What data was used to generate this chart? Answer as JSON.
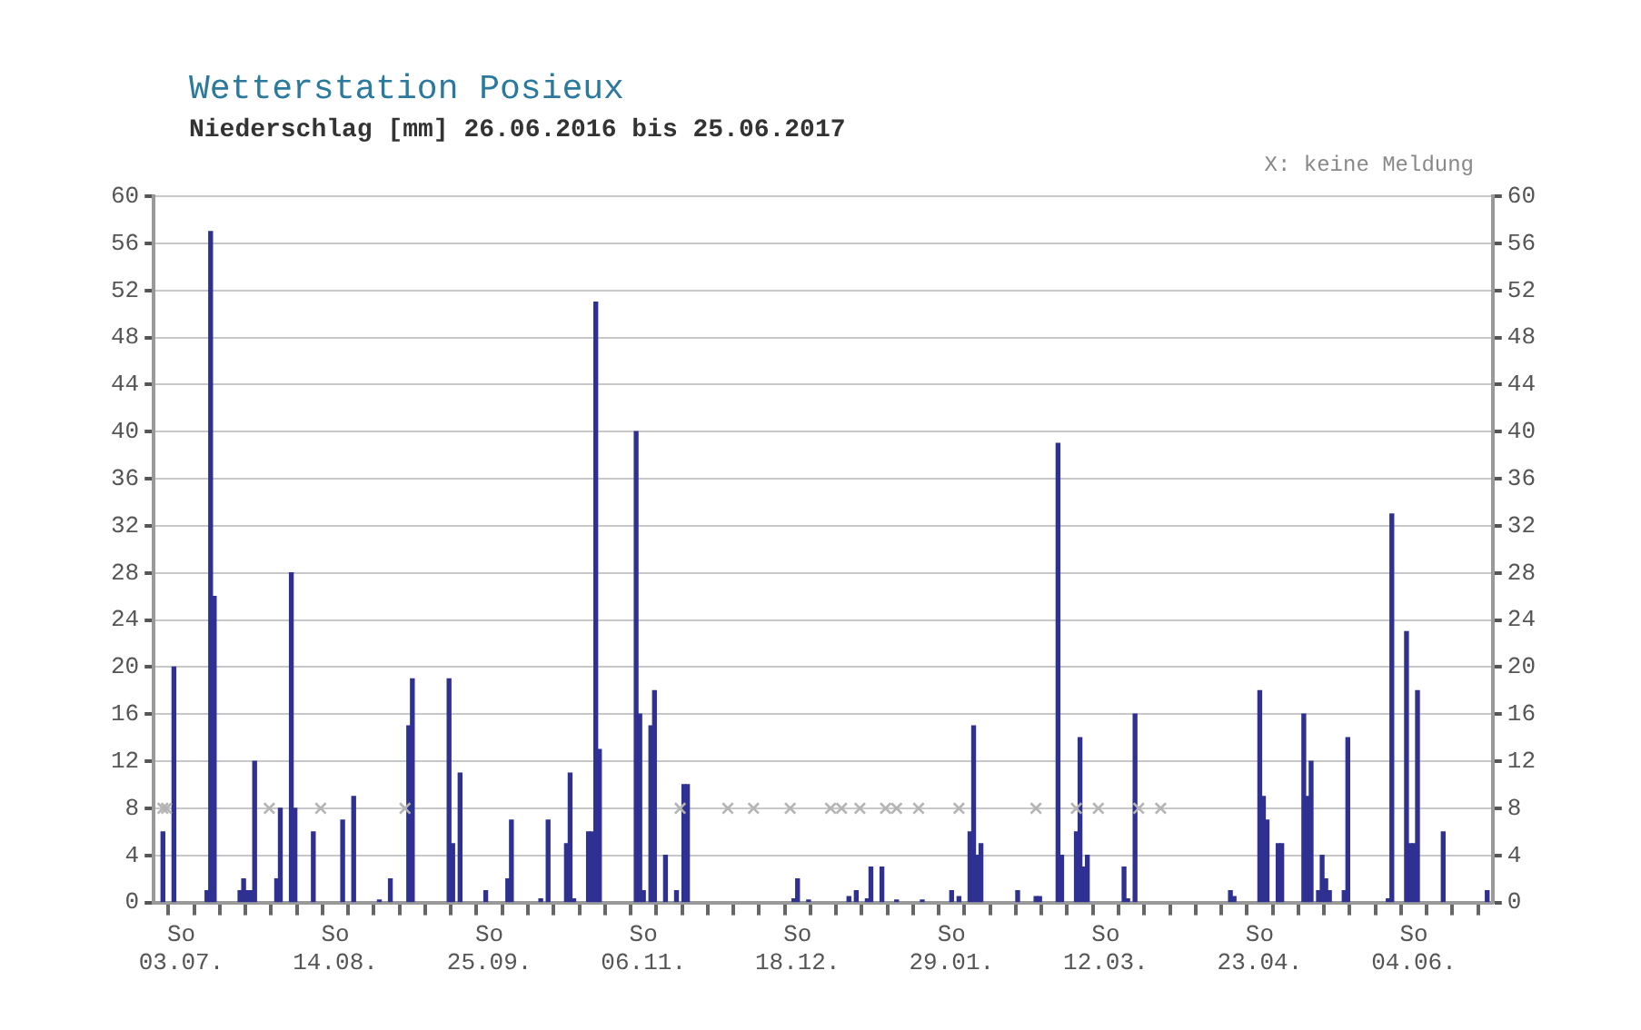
{
  "chart_data": {
    "type": "bar",
    "title": "Wetterstation Posieux",
    "subtitle": "Niederschlag [mm] 26.06.2016 bis 25.06.2017",
    "annotations": [
      "X: keine Meldung"
    ],
    "categories": [
      null,
      null,
      null,
      null,
      null,
      null,
      null,
      "So\n03.07.",
      null,
      null,
      null,
      null,
      null,
      null,
      null,
      null,
      null,
      null,
      null,
      null,
      null,
      null,
      null,
      null,
      null,
      null,
      null,
      null,
      null,
      null,
      null,
      null,
      null,
      null,
      null,
      null,
      null,
      null,
      null,
      null,
      null,
      null,
      null,
      null,
      null,
      null,
      null,
      null,
      null,
      "So\n14.08.",
      null,
      null,
      null,
      null,
      null,
      null,
      null,
      null,
      null,
      null,
      null,
      null,
      null,
      null,
      null,
      null,
      null,
      null,
      null,
      null,
      null,
      null,
      null,
      null,
      null,
      null,
      null,
      null,
      null,
      null,
      null,
      null,
      null,
      null,
      null,
      null,
      null,
      null,
      null,
      null,
      null,
      "So\n25.09.",
      null,
      null,
      null,
      null,
      null,
      null,
      null,
      null,
      null,
      null,
      null,
      null,
      null,
      null,
      null,
      null,
      null,
      null,
      null,
      null,
      null,
      null,
      null,
      null,
      null,
      null,
      null,
      null,
      null,
      null,
      null,
      null,
      null,
      null,
      null,
      null,
      null,
      null,
      null,
      null,
      null,
      "So\n06.11.",
      null,
      null,
      null,
      null,
      null,
      null,
      null,
      null,
      null,
      null,
      null,
      null,
      null,
      null,
      null,
      null,
      null,
      null,
      null,
      null,
      null,
      null,
      null,
      null,
      null,
      null,
      null,
      null,
      null,
      null,
      null,
      null,
      null,
      null,
      null,
      null,
      null,
      null,
      null,
      null,
      null,
      "So\n18.12.",
      null,
      null,
      null,
      null,
      null,
      null,
      null,
      null,
      null,
      null,
      null,
      null,
      null,
      null,
      null,
      null,
      null,
      null,
      null,
      null,
      null,
      null,
      null,
      null,
      null,
      null,
      null,
      null,
      null,
      null,
      null,
      null,
      null,
      null,
      null,
      null,
      null,
      null,
      null,
      null,
      null,
      "So\n29.01.",
      null,
      null,
      null,
      null,
      null,
      null,
      null,
      null,
      null,
      null,
      null,
      null,
      null,
      null,
      null,
      null,
      null,
      null,
      null,
      null,
      null,
      null,
      null,
      null,
      null,
      null,
      null,
      null,
      null,
      null,
      null,
      null,
      null,
      null,
      null,
      null,
      null,
      null,
      null,
      null,
      null,
      "So\n12.03.",
      null,
      null,
      null,
      null,
      null,
      null,
      null,
      null,
      null,
      null,
      null,
      null,
      null,
      null,
      null,
      null,
      null,
      null,
      null,
      null,
      null,
      null,
      null,
      null,
      null,
      null,
      null,
      null,
      null,
      null,
      null,
      null,
      null,
      null,
      null,
      null,
      null,
      null,
      null,
      null,
      null,
      "So\n23.04.",
      null,
      null,
      null,
      null,
      null,
      null,
      null,
      null,
      null,
      null,
      null,
      null,
      null,
      null,
      null,
      null,
      null,
      null,
      null,
      null,
      null,
      null,
      null,
      null,
      null,
      null,
      null,
      null,
      null,
      null,
      null,
      null,
      null,
      null,
      null,
      null,
      null,
      null,
      null,
      null,
      null,
      "So\n04.06.",
      null,
      null,
      null,
      null,
      null,
      null,
      null,
      null,
      null,
      null,
      null,
      null,
      null,
      null,
      null,
      null,
      null,
      null,
      null,
      null,
      null
    ],
    "series": [
      {
        "color": "#2e3192",
        "values": [
          0,
          0,
          6,
          0,
          0,
          20,
          0,
          0,
          0,
          0,
          0,
          0,
          0,
          0,
          1,
          57,
          26,
          0,
          0,
          0,
          0,
          0,
          0,
          1,
          2,
          1,
          1,
          12,
          0,
          0,
          0,
          0,
          0,
          2,
          8,
          0,
          0,
          28,
          8,
          0,
          0,
          0,
          0,
          6,
          0,
          0,
          0,
          0,
          0,
          0,
          0,
          7,
          0,
          0,
          9,
          0,
          0,
          0,
          0,
          0,
          0,
          0.2,
          0,
          0,
          2,
          0,
          0,
          0,
          0,
          15,
          19,
          0,
          0,
          0,
          0,
          0,
          0,
          0,
          0,
          0,
          19,
          5,
          0,
          11,
          0,
          0,
          0,
          0,
          0,
          0,
          1,
          0,
          0,
          0,
          0,
          0,
          2,
          7,
          0,
          0,
          0,
          0,
          0,
          0,
          0,
          0.3,
          0,
          7,
          0,
          0,
          0,
          0,
          5,
          11,
          0.3,
          0,
          0,
          0,
          6,
          6,
          51,
          13,
          0,
          0,
          0,
          0,
          0,
          0,
          0,
          0,
          0,
          40,
          16,
          1,
          0,
          15,
          18,
          0,
          0,
          4,
          0,
          0,
          1,
          0,
          10,
          10,
          0,
          0,
          0,
          0,
          0,
          0,
          0,
          0,
          0,
          0,
          0,
          0,
          0,
          0,
          0,
          0,
          0,
          0,
          0,
          0,
          0,
          0,
          0,
          0,
          0,
          0,
          0,
          0,
          0.3,
          2,
          0,
          0,
          0.2,
          0,
          0,
          0,
          0,
          0,
          0,
          0,
          0,
          0,
          0,
          0.5,
          0,
          1,
          0,
          0,
          0.3,
          3,
          0,
          0,
          3,
          0,
          0,
          0,
          0.2,
          0,
          0,
          0,
          0,
          0,
          0,
          0.2,
          0,
          0,
          0,
          0,
          0,
          0,
          0,
          1,
          0,
          0.5,
          0,
          0,
          6,
          15,
          4,
          5,
          0,
          0,
          0,
          0,
          0,
          0,
          0,
          0,
          0,
          1,
          0,
          0,
          0,
          0,
          0.5,
          0.5,
          0,
          0,
          0,
          0,
          39,
          4,
          0,
          0,
          0,
          6,
          14,
          3,
          4,
          0,
          0,
          0,
          0,
          0,
          0,
          0,
          0,
          0,
          3,
          0.3,
          0,
          16,
          0,
          0,
          0,
          0,
          0,
          0,
          0,
          0,
          0,
          0,
          0,
          0,
          0,
          0,
          0,
          0,
          0,
          0,
          0,
          0,
          0,
          0,
          0,
          0,
          0,
          1,
          0.5,
          0,
          0,
          0,
          0,
          0,
          0,
          18,
          9,
          7,
          0,
          0,
          5,
          5,
          0,
          0,
          0,
          0,
          0,
          16,
          9,
          12,
          0,
          1,
          4,
          2,
          1,
          0,
          0,
          0,
          1,
          14,
          0,
          0,
          0,
          0,
          0,
          0,
          0,
          0,
          0,
          0,
          0.3,
          33,
          0,
          0,
          0,
          23,
          5,
          5,
          18,
          0,
          0,
          0,
          0,
          0,
          0,
          6,
          0,
          0,
          0,
          0,
          0,
          0,
          0,
          0,
          0,
          0,
          0,
          1,
          0
        ]
      },
      {
        "type": "scatter",
        "color": "#b4b4b4",
        "marker": "cross",
        "values": [
          null,
          null,
          8,
          8,
          null,
          null,
          null,
          null,
          null,
          null,
          null,
          null,
          null,
          null,
          null,
          null,
          null,
          null,
          null,
          null,
          null,
          null,
          null,
          null,
          null,
          null,
          null,
          null,
          null,
          null,
          null,
          8,
          null,
          null,
          null,
          null,
          null,
          null,
          null,
          null,
          null,
          null,
          null,
          null,
          null,
          8,
          null,
          null,
          null,
          null,
          null,
          null,
          null,
          null,
          null,
          null,
          null,
          null,
          null,
          null,
          null,
          null,
          null,
          null,
          null,
          null,
          null,
          null,
          8,
          null,
          null,
          null,
          null,
          null,
          null,
          null,
          null,
          null,
          null,
          null,
          null,
          null,
          null,
          null,
          null,
          null,
          null,
          null,
          null,
          null,
          null,
          null,
          null,
          null,
          null,
          null,
          null,
          null,
          null,
          null,
          null,
          null,
          null,
          null,
          null,
          null,
          null,
          null,
          null,
          null,
          null,
          null,
          null,
          null,
          null,
          null,
          null,
          null,
          null,
          null,
          null,
          null,
          null,
          null,
          null,
          null,
          null,
          null,
          null,
          null,
          null,
          null,
          null,
          null,
          null,
          null,
          null,
          null,
          null,
          null,
          null,
          null,
          null,
          8,
          null,
          null,
          null,
          null,
          null,
          null,
          null,
          null,
          null,
          null,
          null,
          null,
          8,
          null,
          null,
          null,
          null,
          null,
          null,
          8,
          null,
          null,
          null,
          null,
          null,
          null,
          null,
          null,
          null,
          8,
          null,
          null,
          null,
          null,
          null,
          null,
          null,
          null,
          null,
          null,
          8,
          null,
          null,
          8,
          null,
          null,
          null,
          null,
          8,
          null,
          null,
          null,
          null,
          null,
          null,
          8,
          null,
          null,
          8,
          null,
          null,
          null,
          null,
          null,
          8,
          null,
          null,
          null,
          null,
          null,
          null,
          null,
          null,
          null,
          null,
          8,
          null,
          null,
          null,
          null,
          null,
          null,
          null,
          null,
          null,
          null,
          null,
          null,
          null,
          null,
          null,
          null,
          null,
          null,
          null,
          null,
          8,
          null,
          null,
          null,
          null,
          null,
          null,
          null,
          null,
          null,
          null,
          8,
          null,
          null,
          null,
          null,
          null,
          8,
          null,
          null,
          null,
          null,
          null,
          null,
          null,
          null,
          null,
          null,
          8,
          null,
          null,
          null,
          null,
          null,
          8,
          null,
          null,
          null,
          null,
          null,
          null,
          null,
          null,
          null,
          null,
          null,
          null,
          null,
          null,
          null,
          null,
          null,
          null,
          null,
          null,
          null,
          null,
          null,
          null,
          null,
          null,
          null,
          null,
          null,
          null,
          null,
          null,
          null,
          null,
          null,
          null,
          null,
          null,
          null,
          null,
          null,
          null,
          null,
          null,
          null,
          null,
          null,
          null,
          null,
          null,
          null,
          null,
          null,
          null,
          null,
          null,
          null,
          null,
          null,
          null,
          null,
          null,
          null,
          null,
          null,
          null,
          null,
          null,
          null,
          null,
          null,
          null,
          null,
          null,
          null,
          null,
          null,
          null,
          null,
          null,
          null,
          null,
          null,
          null,
          null,
          null,
          null,
          null,
          null,
          null
        ]
      }
    ],
    "ylim": [
      0,
      60
    ],
    "yticks": [
      0,
      4,
      8,
      12,
      16,
      20,
      24,
      28,
      32,
      36,
      40,
      44,
      48,
      52,
      56,
      60
    ],
    "y2lim": [
      0,
      60
    ],
    "y2ticks": [
      0,
      4,
      8,
      12,
      16,
      20,
      24,
      28,
      32,
      36,
      40,
      44,
      48,
      52,
      56,
      60
    ],
    "grid": "y",
    "legend": false
  }
}
